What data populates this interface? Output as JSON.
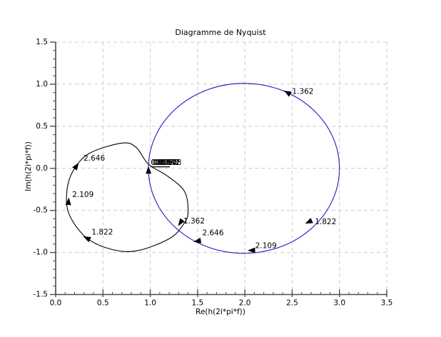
{
  "window": {
    "background": "#ffffff"
  },
  "chart_data": {
    "type": "line",
    "title": "Diagramme de Nyquist",
    "xlabel": "Re(h(2i*pi*f))",
    "ylabel": "Im(h(2i*pi*f))",
    "xlim": [
      0.0,
      3.5
    ],
    "ylim": [
      -1.5,
      1.5
    ],
    "x_ticks": {
      "values": [
        0.0,
        0.5,
        1.0,
        1.5,
        2.0,
        2.5,
        3.0,
        3.5
      ],
      "labels": [
        "0.0",
        "0.5",
        "1.0",
        "1.5",
        "2.0",
        "2.5",
        "3.0",
        "3.5"
      ]
    },
    "y_ticks": {
      "values": [
        -1.5,
        -1.0,
        -0.5,
        0.0,
        0.5,
        1.0,
        1.5
      ],
      "labels": [
        "-1.5",
        "-1.0",
        "-0.5",
        "0.0",
        "0.5",
        "1.0",
        "1.5"
      ]
    },
    "minor_tick_step": 0.1,
    "grid": {
      "show": true,
      "style": "dashed",
      "color": "#cccccc"
    },
    "axis_color": "#4d4d4d",
    "text_color": "#000000",
    "series": [
      {
        "name": "nyquist-black-loop",
        "color": "#000000",
        "shape": "closed-spline",
        "points": [
          [
            0.98,
            0.05
          ],
          [
            1.18,
            -0.09
          ],
          [
            1.36,
            -0.27
          ],
          [
            1.4,
            -0.51
          ],
          [
            1.36,
            -0.65
          ],
          [
            1.21,
            -0.83
          ],
          [
            0.86,
            -0.98
          ],
          [
            0.58,
            -0.96
          ],
          [
            0.32,
            -0.82
          ],
          [
            0.14,
            -0.54
          ],
          [
            0.12,
            -0.26
          ],
          [
            0.19,
            -0.02
          ],
          [
            0.36,
            0.18
          ],
          [
            0.7,
            0.3
          ],
          [
            0.85,
            0.25
          ]
        ]
      },
      {
        "name": "nyquist-blue-circle",
        "color": "#2a2ad1",
        "shape": "circle",
        "center": [
          1.99,
          0.0
        ],
        "radius": 1.01
      }
    ],
    "freq_labels": [
      {
        "series": "nyquist-blue-circle",
        "text": "1.362",
        "label_pos": [
          2.5,
          0.91
        ],
        "arrow_pos": [
          2.452,
          0.898
        ],
        "arrow_angle": 150
      },
      {
        "series": "nyquist-blue-circle",
        "text": "1.822",
        "label_pos": [
          2.74,
          -0.64
        ],
        "arrow_pos": [
          2.678,
          -0.636
        ],
        "arrow_angle": 205
      },
      {
        "series": "nyquist-blue-circle",
        "text": "2.109",
        "label_pos": [
          2.11,
          -0.925
        ],
        "arrow_pos": [
          2.074,
          -0.975
        ],
        "arrow_angle": 180
      },
      {
        "series": "nyquist-blue-circle",
        "text": "2.646",
        "label_pos": [
          1.55,
          -0.77
        ],
        "arrow_pos": [
          1.501,
          -0.864
        ],
        "arrow_angle": 190
      },
      {
        "series": "nyquist-black-loop",
        "text": "1.362",
        "label_pos": [
          1.35,
          -0.63
        ],
        "arrow_pos": [
          1.32,
          -0.644
        ],
        "arrow_angle": 235
      },
      {
        "series": "nyquist-black-loop",
        "text": "1.822",
        "label_pos": [
          0.38,
          -0.76
        ],
        "arrow_pos": [
          0.332,
          -0.831
        ],
        "arrow_angle": 155
      },
      {
        "series": "nyquist-black-loop",
        "text": "2.109",
        "label_pos": [
          0.175,
          -0.315
        ],
        "arrow_pos": [
          0.136,
          -0.398
        ],
        "arrow_angle": 85
      },
      {
        "series": "nyquist-black-loop",
        "text": "2.646",
        "label_pos": [
          0.295,
          0.115
        ],
        "arrow_pos": [
          0.219,
          0.025
        ],
        "arrow_angle": 55
      }
    ],
    "start_point_cluster": {
      "series": "nyquist-black-loop",
      "pos": [
        1.005,
        0.065
      ],
      "texts": [
        "0.010",
        "0.047",
        "0.094",
        "0.152",
        "0.228",
        "0.342",
        "0.748"
      ],
      "arrow_pos": [
        0.981,
        -0.025
      ],
      "arrow_angle": 90
    }
  }
}
